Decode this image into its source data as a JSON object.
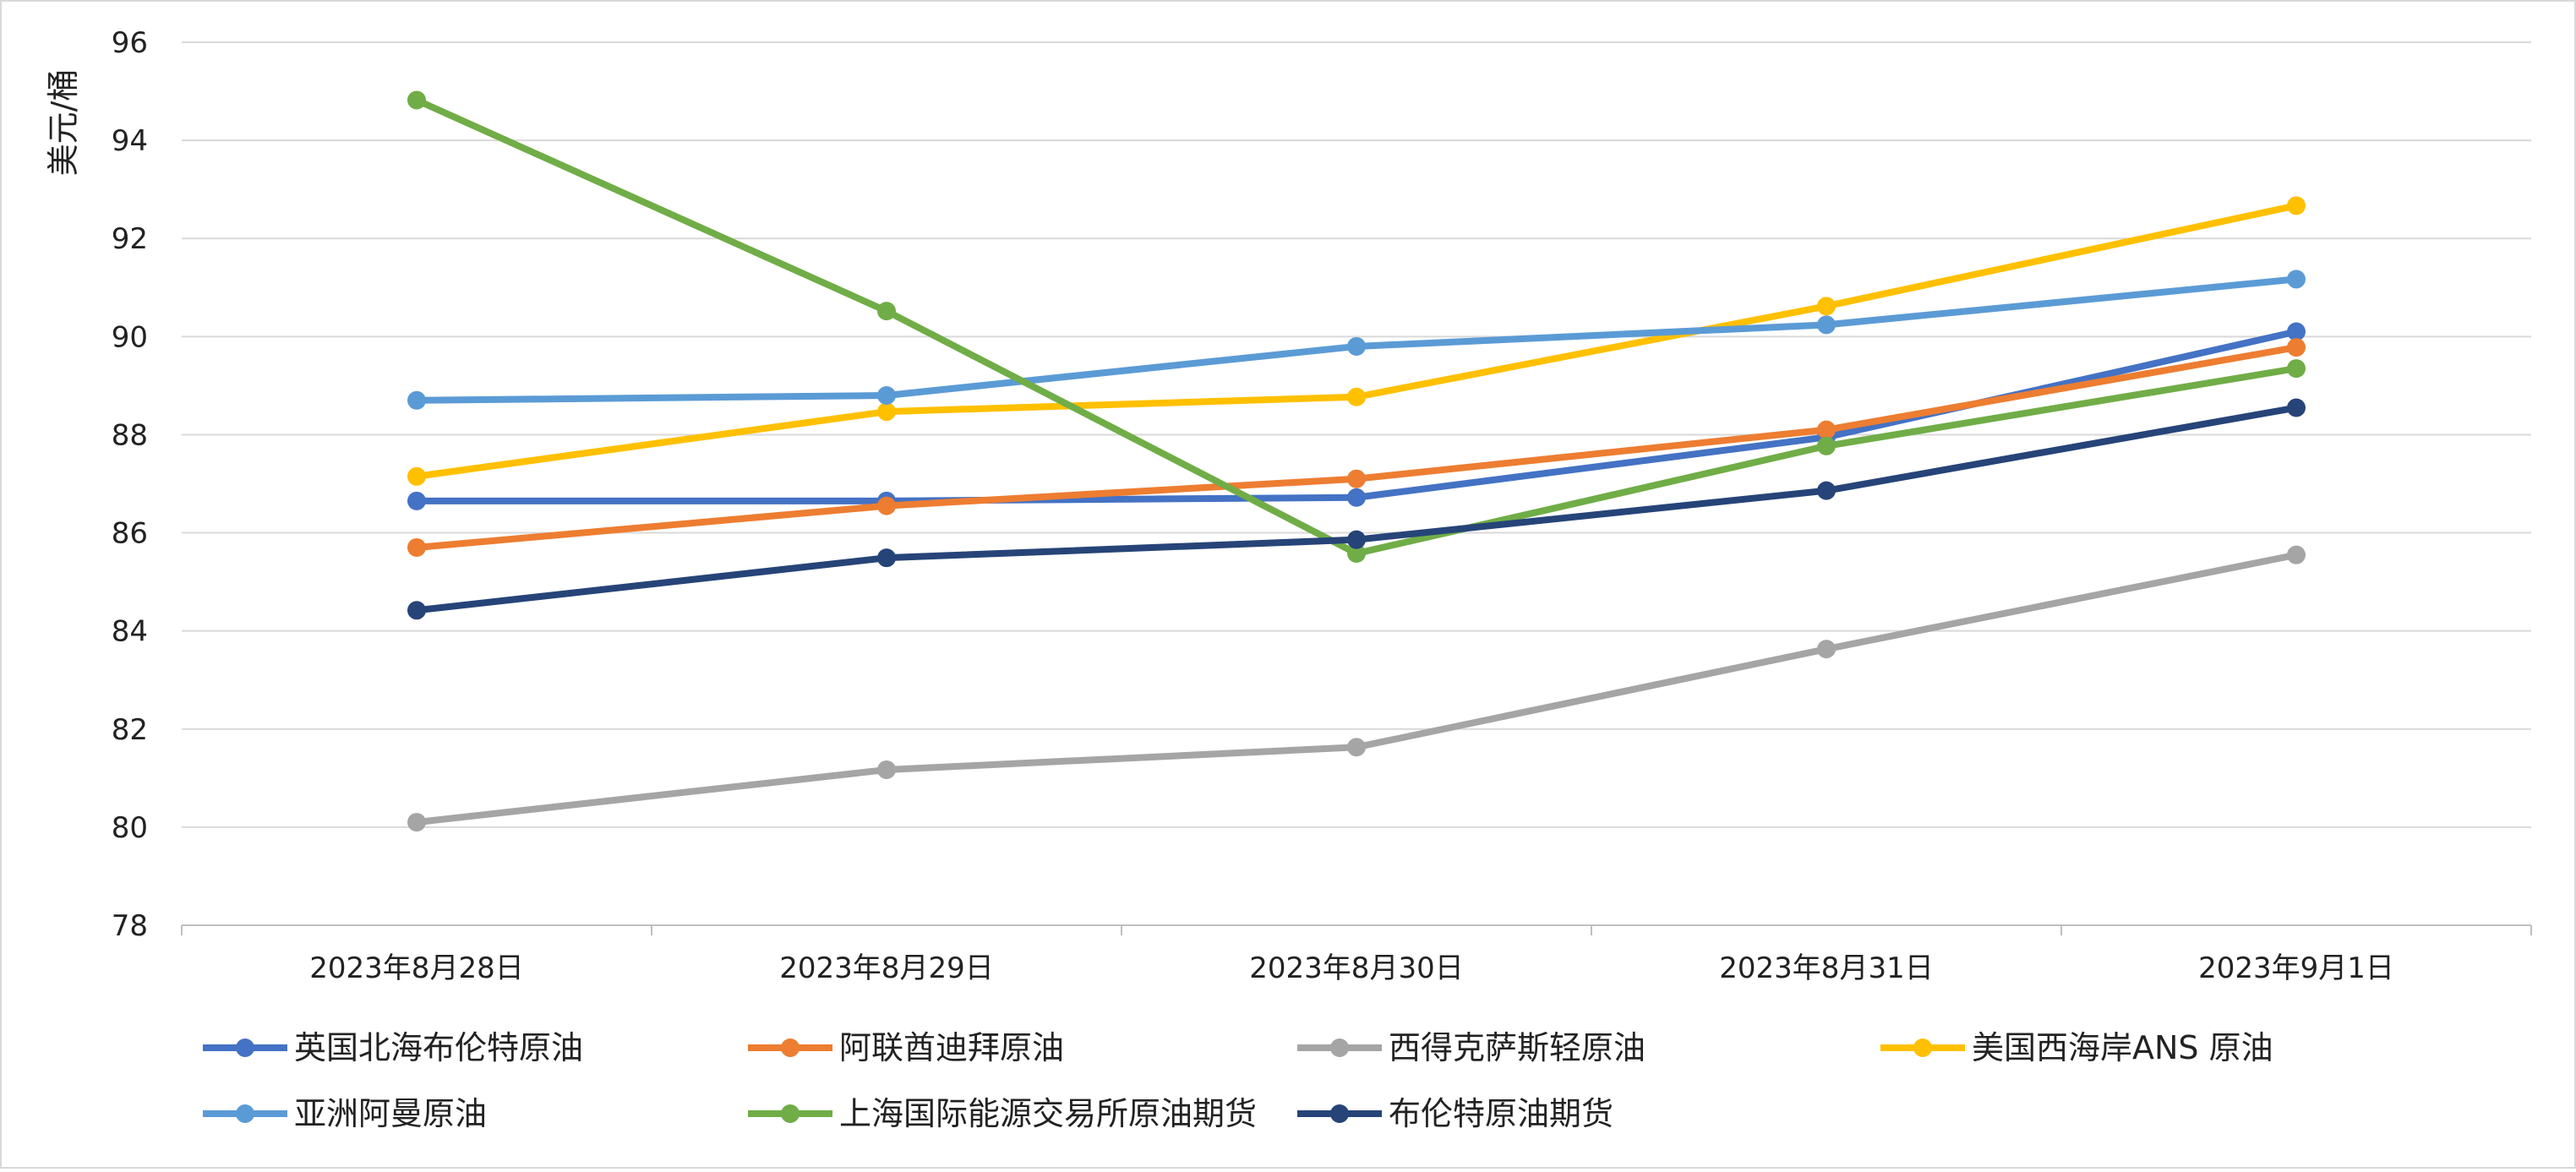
{
  "chart_data": {
    "type": "line",
    "title": "",
    "xlabel": "",
    "ylabel": "美元/桶",
    "categories": [
      "2023年8月28日",
      "2023年8月29日",
      "2023年8月30日",
      "2023年8月31日",
      "2023年9月1日"
    ],
    "ylim": [
      78,
      96
    ],
    "yticks": [
      78,
      80,
      82,
      84,
      86,
      88,
      90,
      92,
      94,
      96
    ],
    "grid": true,
    "legend_position": "bottom",
    "series": [
      {
        "name": "英国北海布伦特原油",
        "color": "#4472C4",
        "values": [
          86.65,
          86.65,
          86.72,
          87.95,
          90.1
        ]
      },
      {
        "name": "阿联酋迪拜原油",
        "color": "#ED7D31",
        "values": [
          85.7,
          86.55,
          87.1,
          88.1,
          89.78
        ]
      },
      {
        "name": "西得克萨斯轻原油",
        "color": "#A5A5A5",
        "values": [
          80.1,
          81.17,
          81.63,
          83.63,
          85.55
        ]
      },
      {
        "name": "美国西海岸ANS 原油",
        "color": "#FFC000",
        "values": [
          87.15,
          88.47,
          88.77,
          90.62,
          92.67
        ]
      },
      {
        "name": "亚洲阿曼原油",
        "color": "#5B9BD5",
        "values": [
          88.7,
          88.8,
          89.8,
          90.24,
          91.17
        ]
      },
      {
        "name": "上海国际能源交易所原油期货",
        "color": "#70AD47",
        "values": [
          94.82,
          90.52,
          85.58,
          87.77,
          89.35
        ]
      },
      {
        "name": "布伦特原油期货",
        "color": "#264478",
        "values": [
          84.42,
          85.49,
          85.86,
          86.86,
          88.55
        ]
      }
    ]
  }
}
